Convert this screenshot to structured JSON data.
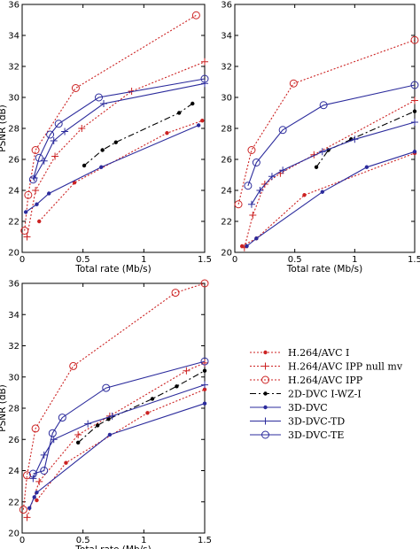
{
  "chart_data": [
    {
      "type": "line",
      "xlabel": "Total rate (Mb/s)",
      "ylabel": "PSNR (dB)",
      "xlim": [
        0,
        1.5
      ],
      "ylim": [
        20,
        36
      ],
      "xticks": [
        0,
        0.5,
        1,
        1.5
      ],
      "xtick_labels": [
        "0",
        "0.5",
        "1",
        "1.5"
      ],
      "yticks": [
        20,
        22,
        24,
        26,
        28,
        30,
        32,
        34,
        36
      ],
      "ytick_labels": [
        "20",
        "22",
        "24",
        "26",
        "28",
        "30",
        "32",
        "34",
        "36"
      ],
      "series": [
        {
          "x": [
            0.14,
            0.43,
            1.19,
            1.48
          ],
          "y": [
            22.0,
            24.5,
            27.7,
            28.5
          ]
        },
        {
          "x": [
            0.04,
            0.11,
            0.27,
            0.49,
            0.9,
            1.5
          ],
          "y": [
            21.0,
            24.0,
            26.2,
            28.0,
            30.4,
            32.3
          ]
        },
        {
          "x": [
            0.02,
            0.05,
            0.11,
            0.44,
            1.43
          ],
          "y": [
            21.4,
            23.7,
            26.6,
            30.6,
            35.3
          ]
        },
        {
          "x": [
            0.51,
            0.66,
            0.77,
            1.29,
            1.4
          ],
          "y": [
            25.6,
            26.6,
            27.1,
            29.0,
            29.6
          ]
        },
        {
          "x": [
            0.03,
            0.12,
            0.22,
            0.65,
            1.45
          ],
          "y": [
            22.6,
            23.1,
            23.8,
            25.5,
            28.2
          ]
        },
        {
          "x": [
            0.1,
            0.18,
            0.26,
            0.35,
            0.67,
            1.5
          ],
          "y": [
            24.8,
            25.9,
            27.2,
            27.8,
            29.6,
            30.9
          ]
        },
        {
          "x": [
            0.09,
            0.14,
            0.23,
            0.3,
            0.63,
            1.5
          ],
          "y": [
            24.7,
            26.1,
            27.6,
            28.3,
            30.0,
            31.2
          ]
        }
      ]
    },
    {
      "type": "line",
      "xlabel": "Total rate (Mb/s)",
      "ylabel": "",
      "xlim": [
        0,
        1.5
      ],
      "ylim": [
        20,
        36
      ],
      "xticks": [
        0,
        0.5,
        1,
        1.5
      ],
      "xtick_labels": [
        "0",
        "0.5",
        "1",
        "1.5"
      ],
      "yticks": [
        20,
        22,
        24,
        26,
        28,
        30,
        32,
        34,
        36
      ],
      "ytick_labels": [
        "20",
        "22",
        "24",
        "26",
        "28",
        "30",
        "32",
        "34",
        "36"
      ],
      "series": [
        {
          "x": [
            0.06,
            0.18,
            0.58,
            1.5
          ],
          "y": [
            20.4,
            20.9,
            23.7,
            26.4
          ]
        },
        {
          "x": [
            0.08,
            0.15,
            0.25,
            0.38,
            0.66,
            1.5
          ],
          "y": [
            20.3,
            22.4,
            24.4,
            25.1,
            26.3,
            29.8
          ]
        },
        {
          "x": [
            0.03,
            0.14,
            0.49,
            1.5
          ],
          "y": [
            23.1,
            26.6,
            30.9,
            33.7
          ]
        },
        {
          "x": [
            0.68,
            0.78,
            0.97,
            1.5
          ],
          "y": [
            25.5,
            26.6,
            27.3,
            29.1
          ]
        },
        {
          "x": [
            0.1,
            0.18,
            0.73,
            1.1,
            1.5
          ],
          "y": [
            20.4,
            20.9,
            23.9,
            25.5,
            26.5
          ]
        },
        {
          "x": [
            0.14,
            0.21,
            0.31,
            0.4,
            0.73,
            1.0,
            1.5
          ],
          "y": [
            23.1,
            24.0,
            24.9,
            25.3,
            26.5,
            27.3,
            28.4
          ]
        },
        {
          "x": [
            0.11,
            0.18,
            0.4,
            0.74,
            1.5
          ],
          "y": [
            24.3,
            25.8,
            27.9,
            29.5,
            30.8
          ]
        }
      ]
    },
    {
      "type": "line",
      "xlabel": "Total rate (Mb/s)",
      "ylabel": "PSNR (dB)",
      "xlim": [
        0,
        1.5
      ],
      "ylim": [
        20,
        36
      ],
      "xticks": [
        0,
        0.5,
        1,
        1.5
      ],
      "xtick_labels": [
        "0",
        "0.5",
        "1",
        "1.5"
      ],
      "yticks": [
        20,
        22,
        24,
        26,
        28,
        30,
        32,
        34,
        36
      ],
      "ytick_labels": [
        "20",
        "22",
        "24",
        "26",
        "28",
        "30",
        "32",
        "34",
        "36"
      ],
      "series": [
        {
          "x": [
            0.12,
            0.36,
            1.03,
            1.5
          ],
          "y": [
            22.1,
            24.5,
            27.7,
            29.2
          ]
        },
        {
          "x": [
            0.04,
            0.14,
            0.46,
            0.72,
            1.35,
            1.5
          ],
          "y": [
            21.0,
            23.3,
            26.3,
            27.5,
            30.4,
            30.9
          ]
        },
        {
          "x": [
            0.01,
            0.04,
            0.11,
            0.42,
            1.26,
            1.5
          ],
          "y": [
            21.5,
            23.7,
            26.7,
            30.7,
            35.4,
            36.0
          ]
        },
        {
          "x": [
            0.46,
            0.62,
            0.71,
            1.07,
            1.27,
            1.5
          ],
          "y": [
            25.8,
            26.9,
            27.3,
            28.6,
            29.4,
            30.4
          ]
        },
        {
          "x": [
            0.06,
            0.1,
            0.12,
            0.72,
            1.5
          ],
          "y": [
            21.6,
            22.3,
            22.6,
            26.3,
            28.3
          ]
        },
        {
          "x": [
            0.09,
            0.18,
            0.26,
            0.54,
            0.74,
            1.5
          ],
          "y": [
            23.5,
            25.0,
            26.0,
            27.0,
            27.5,
            29.5
          ]
        },
        {
          "x": [
            0.09,
            0.18,
            0.25,
            0.33,
            0.69,
            1.5
          ],
          "y": [
            23.8,
            24.0,
            26.4,
            27.4,
            29.3,
            31.0
          ]
        }
      ]
    }
  ],
  "legend": {
    "entries": [
      "H.264/AVC I",
      "H.264/AVC IPP null mv",
      "H.264/AVC IPP",
      "2D-DVC I-WZ-I",
      "3D-DVC",
      "3D-DVC-TD",
      "3D-DVC-TE"
    ]
  },
  "colors": {
    "red": "#cc2222",
    "blue": "#2b2b9c",
    "black": "#000000"
  }
}
